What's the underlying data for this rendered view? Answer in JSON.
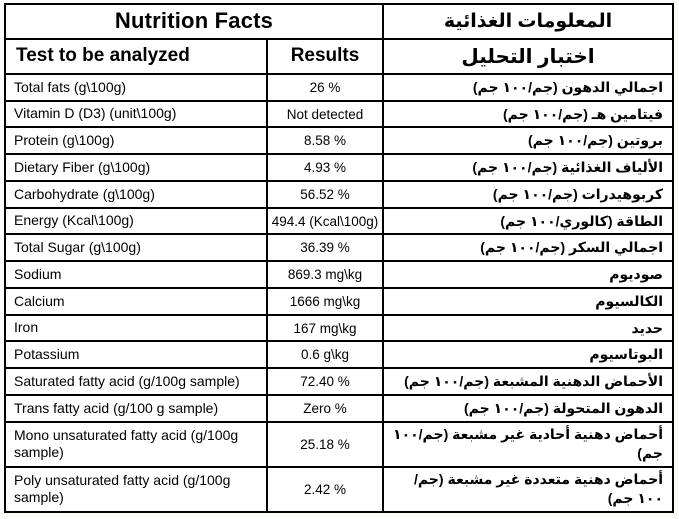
{
  "header": {
    "title_en": "Nutrition Facts",
    "title_ar": "المعلومات الغذائية"
  },
  "columns": {
    "test": "Test to be analyzed",
    "results": "Results",
    "test_ar": "اختبار التحليل"
  },
  "rows": [
    {
      "en": "Total fats (g\\100g)",
      "result": "26 %",
      "ar": "اجمالي الدهون (جم/١٠٠ جم)"
    },
    {
      "en": "Vitamin D (D3) (unit\\100g)",
      "result": "Not detected",
      "ar": "فيتامين هـ (جم/١٠٠ جم)"
    },
    {
      "en": "Protein (g\\100g)",
      "result": "8.58 %",
      "ar": "بروتين (جم/١٠٠ جم)"
    },
    {
      "en": "Dietary Fiber (g\\100g)",
      "result": "4.93 %",
      "ar": "الألياف الغذائية (جم/١٠٠ جم)"
    },
    {
      "en": "Carbohydrate (g\\100g)",
      "result": "56.52 %",
      "ar": "كربوهيدرات (جم/١٠٠ جم)"
    },
    {
      "en": "Energy (Kcal\\100g)",
      "result": "494.4 (Kcal\\100g)",
      "ar": "الطاقة (كالوري/١٠٠ جم)"
    },
    {
      "en": "Total Sugar (g\\100g)",
      "result": "36.39 %",
      "ar": "اجمالي السكر (جم/١٠٠ جم)"
    },
    {
      "en": "Sodium",
      "result": "869.3 mg\\kg",
      "ar": "صوديوم"
    },
    {
      "en": "Calcium",
      "result": "1666 mg\\kg",
      "ar": "الكالسيوم"
    },
    {
      "en": "Iron",
      "result": "167 mg\\kg",
      "ar": "حديد"
    },
    {
      "en": "Potassium",
      "result": "0.6 g\\kg",
      "ar": "البوتاسيوم"
    },
    {
      "en": "Saturated fatty acid (g/100g sample)",
      "result": "72.40 %",
      "ar": "الأحماض الدهنية المشبعة (جم/١٠٠ جم)"
    },
    {
      "en": "Trans fatty acid (g/100 g sample)",
      "result": "Zero %",
      "ar": "الدهون المتحولة (جم/١٠٠ جم)"
    },
    {
      "en": "Mono unsaturated fatty acid (g/100g sample)",
      "result": "25.18 %",
      "ar": "أحماض دهنية أحادية غير مشبعة (جم/١٠٠ جم)"
    },
    {
      "en": "Poly unsaturated fatty acid (g/100g sample)",
      "result": "2.42 %",
      "ar": "أحماض دهنية متعددة غير مشبعة (جم/١٠٠ جم)"
    }
  ]
}
